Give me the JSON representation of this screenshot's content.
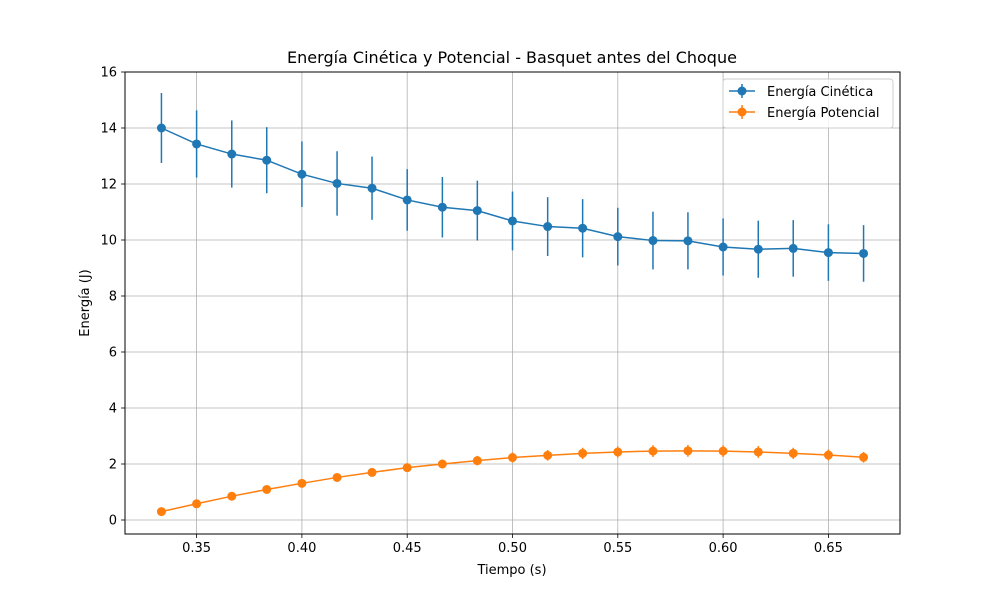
{
  "chart_data": {
    "type": "line",
    "title": "Energía Cinética y Potencial - Basquet antes del Choque",
    "xlabel": "Tiempo (s)",
    "ylabel": "Energía (J)",
    "xlim": [
      0.316,
      0.684
    ],
    "ylim": [
      -0.5,
      16
    ],
    "x_ticks": [
      0.35,
      0.4,
      0.45,
      0.5,
      0.55,
      0.6,
      0.65
    ],
    "x_tick_labels": [
      "0.35",
      "0.40",
      "0.45",
      "0.50",
      "0.55",
      "0.60",
      "0.65"
    ],
    "y_ticks": [
      0,
      2,
      4,
      6,
      8,
      10,
      12,
      14,
      16
    ],
    "y_tick_labels": [
      "0",
      "2",
      "4",
      "6",
      "8",
      "10",
      "12",
      "14",
      "16"
    ],
    "grid": true,
    "legend_position": "top-right",
    "x": [
      0.3333,
      0.35,
      0.3667,
      0.3833,
      0.4,
      0.4167,
      0.4333,
      0.45,
      0.4667,
      0.4833,
      0.5,
      0.5167,
      0.5333,
      0.55,
      0.5667,
      0.5833,
      0.6,
      0.6167,
      0.6333,
      0.65,
      0.6667
    ],
    "series": [
      {
        "name": "Energía Cinética",
        "color": "#1f77b4",
        "values": [
          14.0,
          13.43,
          13.07,
          12.85,
          12.35,
          12.02,
          11.85,
          11.43,
          11.17,
          11.05,
          10.68,
          10.48,
          10.42,
          10.12,
          9.98,
          9.97,
          9.75,
          9.67,
          9.7,
          9.55,
          9.52
        ],
        "errors": [
          1.25,
          1.2,
          1.2,
          1.18,
          1.17,
          1.15,
          1.13,
          1.1,
          1.08,
          1.07,
          1.05,
          1.05,
          1.04,
          1.03,
          1.03,
          1.02,
          1.02,
          1.02,
          1.01,
          1.01,
          1.01
        ]
      },
      {
        "name": "Energía Potencial",
        "color": "#ff7f0e",
        "values": [
          0.3,
          0.58,
          0.85,
          1.09,
          1.31,
          1.52,
          1.7,
          1.87,
          2.0,
          2.12,
          2.23,
          2.31,
          2.38,
          2.43,
          2.46,
          2.47,
          2.46,
          2.43,
          2.38,
          2.32,
          2.24
        ],
        "errors": [
          0.03,
          0.06,
          0.08,
          0.1,
          0.12,
          0.13,
          0.14,
          0.15,
          0.16,
          0.17,
          0.18,
          0.19,
          0.2,
          0.2,
          0.21,
          0.21,
          0.21,
          0.21,
          0.2,
          0.2,
          0.19
        ]
      }
    ]
  }
}
